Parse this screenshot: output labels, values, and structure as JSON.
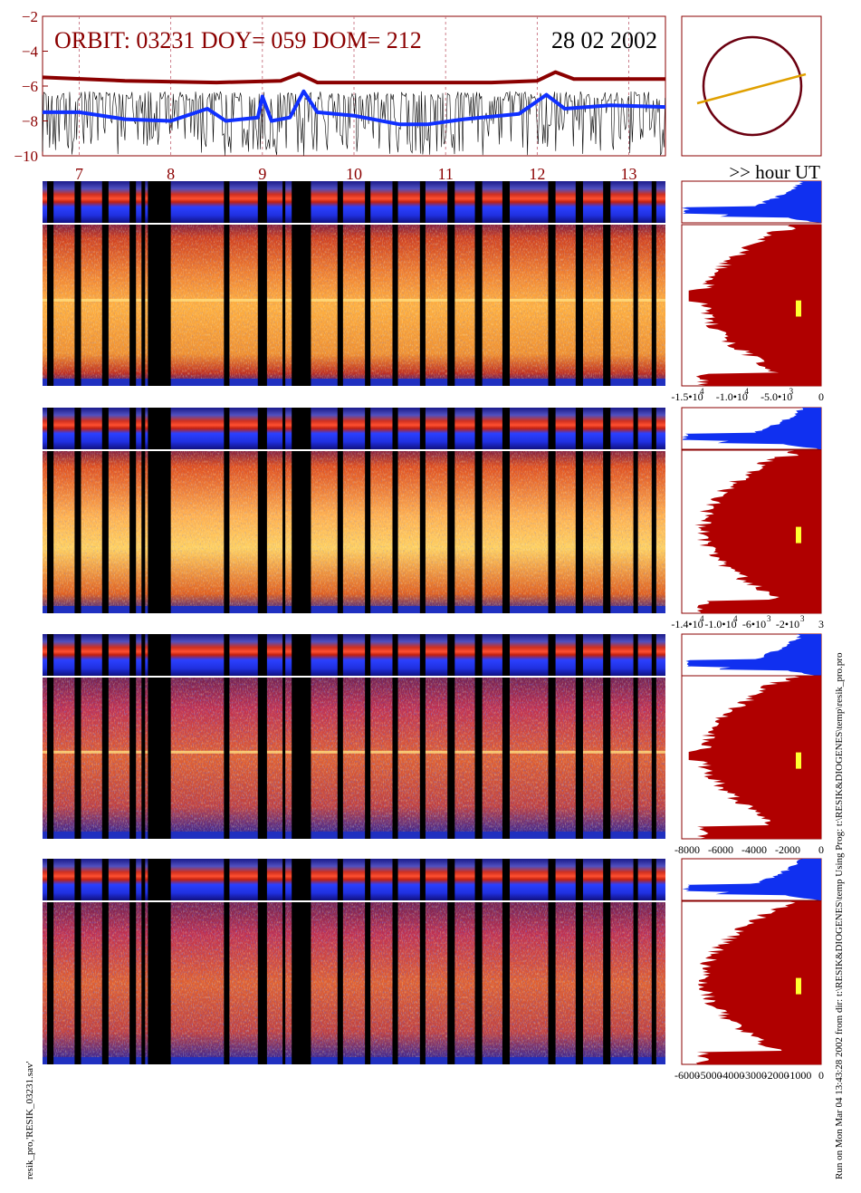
{
  "header": {
    "orbit_label": "ORBIT: 03231 DOY=  059 DOM=  212",
    "date_label": "28 02 2002",
    "hour_axis_label": ">> hour UT"
  },
  "footer": {
    "left_label": "resik_pro,'RESIK_03231.sav'",
    "right_label": "Run on Mon Mar 04 13:43:28 2002  from dir: t:\\RESIK&DIOGENES\\temp Using Prog: t:\\RESIK&DIOGENES\\temp\\resik_pro.pro"
  },
  "colors": {
    "dark_red": "#8b0000",
    "blue": "#1030ff",
    "orange": "#e0a000",
    "histogram_red": "#b00000",
    "histogram_blue": "#1030f0",
    "marker_yellow": "#ffff30"
  },
  "chart_data": [
    {
      "type": "line",
      "ylim": [
        -10,
        -2
      ],
      "y_ticks": [
        "-2",
        "-4",
        "-6",
        "-8",
        "-10"
      ],
      "xlim": [
        6.6,
        13.4
      ],
      "x_ticks": [
        "7",
        "8",
        "9",
        "10",
        "11",
        "12",
        "13"
      ],
      "grid": "dashed vertical at each hour",
      "series": [
        {
          "color": "#8b0000",
          "x": [
            6.6,
            7.5,
            8.5,
            9.2,
            9.4,
            9.6,
            10.5,
            11.5,
            12.0,
            12.2,
            12.4,
            13.0,
            13.4
          ],
          "values": [
            -5.5,
            -5.7,
            -5.8,
            -5.7,
            -5.3,
            -5.8,
            -5.8,
            -5.8,
            -5.7,
            -5.2,
            -5.6,
            -5.6,
            -5.6
          ]
        },
        {
          "color": "#1030ff",
          "x": [
            6.6,
            7.0,
            7.5,
            8.0,
            8.4,
            8.6,
            8.95,
            9.0,
            9.1,
            9.3,
            9.45,
            9.6,
            10.0,
            10.5,
            10.8,
            11.2,
            11.8,
            12.1,
            12.3,
            12.8,
            13.4
          ],
          "values": [
            -7.5,
            -7.5,
            -7.9,
            -8.0,
            -7.3,
            -8.0,
            -7.8,
            -6.6,
            -8.0,
            -7.8,
            -6.3,
            -7.5,
            -7.7,
            -8.2,
            -8.2,
            -7.9,
            -7.6,
            -6.5,
            -7.3,
            -7.1,
            -7.2
          ]
        }
      ]
    },
    {
      "type": "histogram-panel",
      "x_ticks": [
        "-1.5•10",
        "-1.0•10",
        "-5.0•10",
        "0"
      ],
      "x_tick_exponents": [
        "4",
        "4",
        "3",
        ""
      ]
    },
    {
      "type": "histogram-panel",
      "x_ticks": [
        "-1.4•10",
        "-1.0•10",
        "-6•10",
        "-2•10",
        "3"
      ],
      "x_tick_exponents": [
        "4",
        "4",
        "3",
        "3",
        ""
      ]
    },
    {
      "type": "histogram-panel",
      "x_ticks": [
        "-8000",
        "-6000",
        "-4000",
        "-2000",
        "0"
      ]
    },
    {
      "type": "histogram-panel",
      "x_ticks": [
        "-6000",
        "-5000",
        "-4000",
        "-3000",
        "-2000",
        "-1000",
        "0"
      ]
    }
  ]
}
